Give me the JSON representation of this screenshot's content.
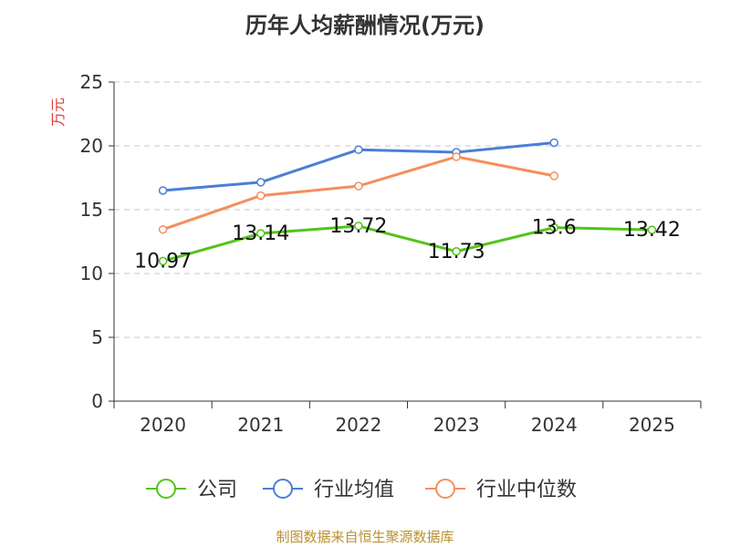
{
  "chart_data": {
    "type": "line",
    "title": "历年人均薪酬情况(万元)",
    "ylabel": "万元",
    "xlabel": "",
    "ylim": [
      0,
      25
    ],
    "yticks": [
      0,
      5,
      10,
      15,
      20,
      25
    ],
    "categories": [
      "2020",
      "2021",
      "2022",
      "2023",
      "2024",
      "2025"
    ],
    "grid": true,
    "legend_position": "bottom",
    "series": [
      {
        "name": "公司",
        "color": "#52c41a",
        "values": [
          10.97,
          13.14,
          13.72,
          11.73,
          13.6,
          13.42
        ],
        "labels": [
          "10.97",
          "13.14",
          "13.72",
          "11.73",
          "13.6",
          "13.42"
        ]
      },
      {
        "name": "行业均值",
        "color": "#4a7fd6",
        "values": [
          16.5,
          17.15,
          19.7,
          19.5,
          20.25,
          null
        ]
      },
      {
        "name": "行业中位数",
        "color": "#f48f5c",
        "values": [
          13.45,
          16.1,
          16.85,
          19.15,
          17.65,
          null
        ]
      }
    ]
  },
  "footer": "制图数据来自恒生聚源数据库"
}
